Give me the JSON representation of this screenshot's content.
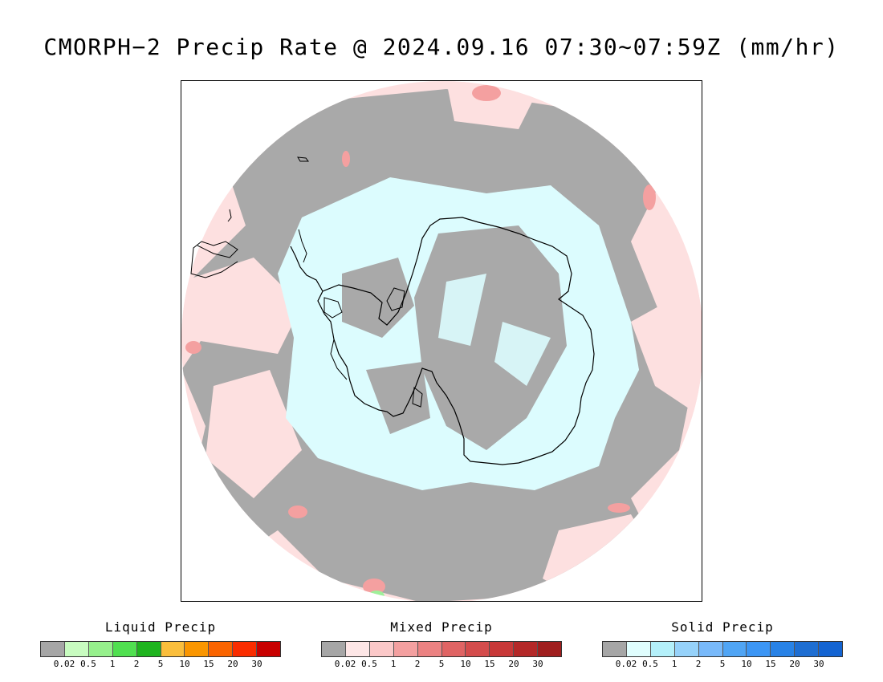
{
  "title": "CMORPH−2 Precip Rate @ 2024.09.16 07:30∼07:59Z (mm/hr)",
  "map": {
    "projection": "south-polar-stereographic",
    "colors": {
      "no_precip": "#a9a9a9",
      "mixed_light": "#fde0e0",
      "solid_light": "#dcfcfe",
      "mixed_moderate": "#f4a0a0",
      "liquid_light": "#9ef09a",
      "coastline": "#000000"
    }
  },
  "legends": [
    {
      "title": "Liquid Precip",
      "colors": [
        "#a6a6a6",
        "#c8fcc0",
        "#96f08c",
        "#50e050",
        "#1eb41e",
        "#fabe3c",
        "#fa9600",
        "#fa6400",
        "#fa2d00",
        "#c80000"
      ],
      "ticks": [
        "0.02",
        "0.5",
        "1",
        "2",
        "5",
        "10",
        "15",
        "20",
        "30"
      ]
    },
    {
      "title": "Mixed Precip",
      "colors": [
        "#a6a6a6",
        "#fde6e6",
        "#fbc8c8",
        "#f4a0a0",
        "#ec8282",
        "#e06464",
        "#d44c4c",
        "#c83838",
        "#b42828",
        "#a01e1e"
      ],
      "ticks": [
        "0.02",
        "0.5",
        "1",
        "2",
        "5",
        "10",
        "15",
        "20",
        "30"
      ]
    },
    {
      "title": "Solid Precip",
      "colors": [
        "#a6a6a6",
        "#e0fefe",
        "#b4f0fa",
        "#96d2fa",
        "#78b9fa",
        "#50a5f5",
        "#3c96f5",
        "#2882e6",
        "#1e6ed2",
        "#1464d2"
      ],
      "ticks": [
        "0.02",
        "0.5",
        "1",
        "2",
        "5",
        "10",
        "15",
        "20",
        "30"
      ]
    }
  ]
}
